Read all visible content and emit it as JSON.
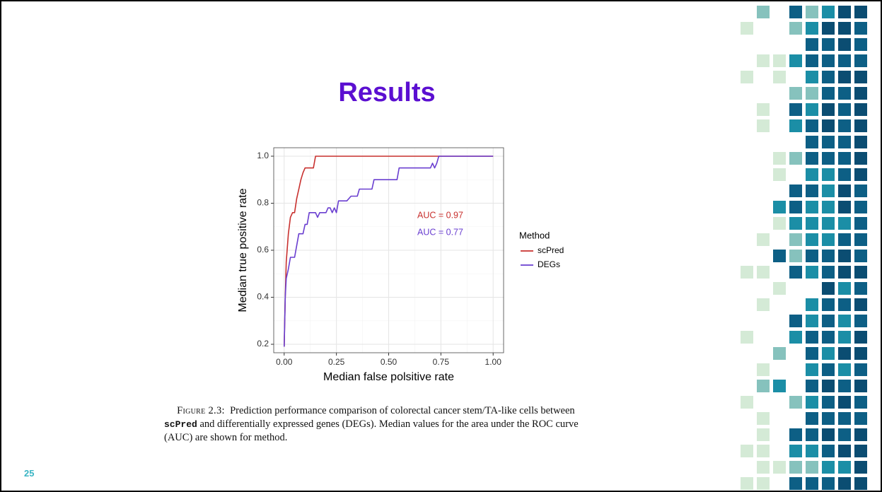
{
  "title": "Results",
  "chart_data": {
    "type": "line",
    "x_label": "Median false polsitive rate",
    "y_label": "Median true positive rate",
    "xlim": [
      -0.05,
      1.05
    ],
    "ylim": [
      0.164,
      1.036
    ],
    "xticks": [
      {
        "value": 0,
        "label": "0.00"
      },
      0.25,
      {
        "value": 0.5,
        "label": "0.50"
      },
      0.75,
      {
        "value": 1,
        "label": "1.00"
      }
    ],
    "yticks": [
      0.2,
      0.4,
      0.6,
      0.8,
      {
        "value": 1,
        "label": "1.0"
      }
    ],
    "grid": true,
    "legend_title": "Method",
    "series": [
      {
        "name": "scPred",
        "color": "#c8302e",
        "x": [
          0,
          0.005,
          0.01,
          0.02,
          0.03,
          0.04,
          0.05,
          0.06,
          0.07,
          0.08,
          0.09,
          0.1,
          0.14,
          0.15,
          1
        ],
        "values": [
          0.19,
          0.4,
          0.55,
          0.67,
          0.74,
          0.76,
          0.76,
          0.82,
          0.86,
          0.9,
          0.93,
          0.95,
          0.95,
          1.0,
          1.0
        ]
      },
      {
        "name": "DEGs",
        "color": "#6a3fd0",
        "x": [
          0,
          0.005,
          0.01,
          0.02,
          0.03,
          0.05,
          0.06,
          0.07,
          0.09,
          0.1,
          0.11,
          0.12,
          0.15,
          0.16,
          0.17,
          0.2,
          0.21,
          0.22,
          0.23,
          0.24,
          0.25,
          0.26,
          0.3,
          0.32,
          0.35,
          0.36,
          0.42,
          0.43,
          0.54,
          0.55,
          0.7,
          0.71,
          0.72,
          0.73,
          0.74,
          1
        ],
        "values": [
          0.19,
          0.4,
          0.48,
          0.52,
          0.57,
          0.57,
          0.62,
          0.67,
          0.67,
          0.71,
          0.71,
          0.76,
          0.76,
          0.74,
          0.76,
          0.76,
          0.78,
          0.78,
          0.76,
          0.78,
          0.76,
          0.81,
          0.81,
          0.83,
          0.83,
          0.86,
          0.86,
          0.9,
          0.9,
          0.95,
          0.95,
          0.97,
          0.95,
          0.97,
          1.0,
          1.0
        ]
      }
    ],
    "annotations": [
      {
        "text": "AUC = 0.97",
        "color": "#c8302e"
      },
      {
        "text": "AUC = 0.77",
        "color": "#6a3fd0"
      }
    ]
  },
  "caption": {
    "label": "Figure 2.3:",
    "line1": "Prediction performance comparison of colorectal cancer stem/TA-like cells between",
    "code": "scPred",
    "line2": "and differentially expressed genes (DEGs). Median values for the area under the ROC curve",
    "line3": "(AUC) are shown for method."
  },
  "page_number": "25"
}
